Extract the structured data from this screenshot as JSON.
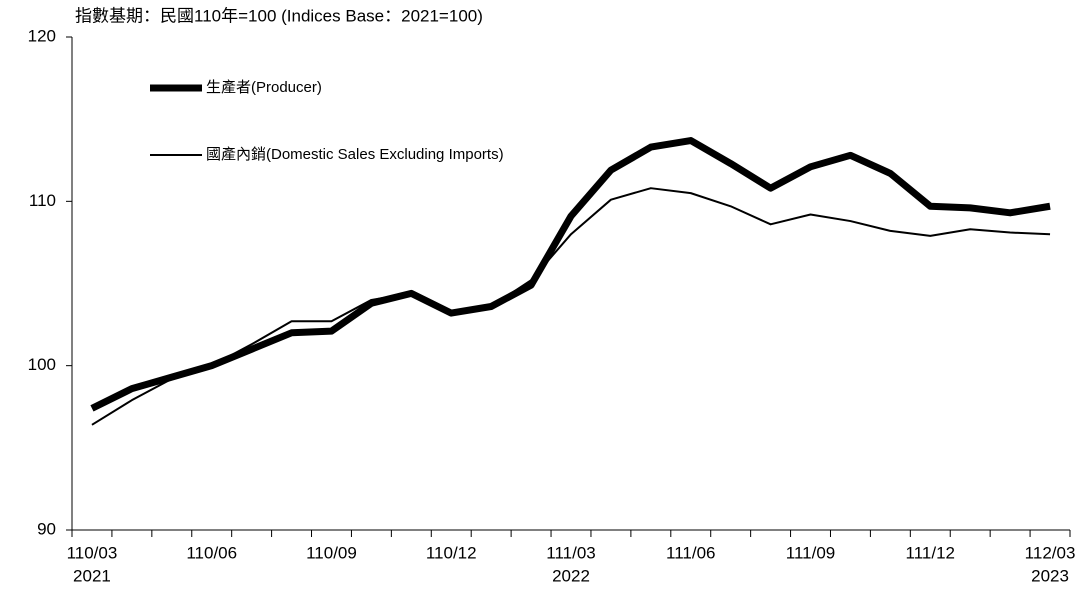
{
  "chart_data": {
    "type": "line",
    "title": "指數基期：民國110年=100 (Indices Base：2021=100)",
    "categories": [
      "110/03",
      null,
      null,
      "110/06",
      null,
      null,
      "110/09",
      null,
      null,
      "110/12",
      null,
      null,
      "111/03",
      null,
      null,
      "111/06",
      null,
      null,
      "111/09",
      null,
      null,
      "111/12",
      null,
      null,
      "112/03"
    ],
    "category_years": [
      "2021",
      null,
      null,
      null,
      null,
      null,
      null,
      null,
      null,
      null,
      null,
      null,
      "2022",
      null,
      null,
      null,
      null,
      null,
      null,
      null,
      null,
      null,
      null,
      null,
      "2023"
    ],
    "series": [
      {
        "name": "生產者(Producer)",
        "color": "#000000",
        "line_width": 7,
        "values": [
          97.4,
          98.6,
          99.3,
          100.0,
          101.0,
          102.0,
          102.1,
          103.8,
          104.4,
          103.2,
          103.6,
          104.9,
          109.1,
          111.9,
          113.3,
          113.7,
          112.3,
          110.8,
          112.1,
          112.8,
          111.7,
          109.7,
          109.6,
          109.3,
          109.7
        ]
      },
      {
        "name": "國產內銷(Domestic Sales Excluding Imports)",
        "color": "#000000",
        "line_width": 2,
        "values": [
          96.4,
          97.9,
          99.2,
          100.0,
          101.3,
          102.7,
          102.7,
          104.0,
          104.4,
          103.2,
          103.6,
          105.2,
          108.0,
          110.1,
          110.8,
          110.5,
          109.7,
          108.6,
          109.2,
          108.8,
          108.2,
          107.9,
          108.3,
          108.1,
          108.0
        ]
      }
    ],
    "ylim": [
      90,
      120
    ],
    "yticks": [
      90,
      100,
      110,
      120
    ],
    "grid": false,
    "legend": "upper left"
  }
}
